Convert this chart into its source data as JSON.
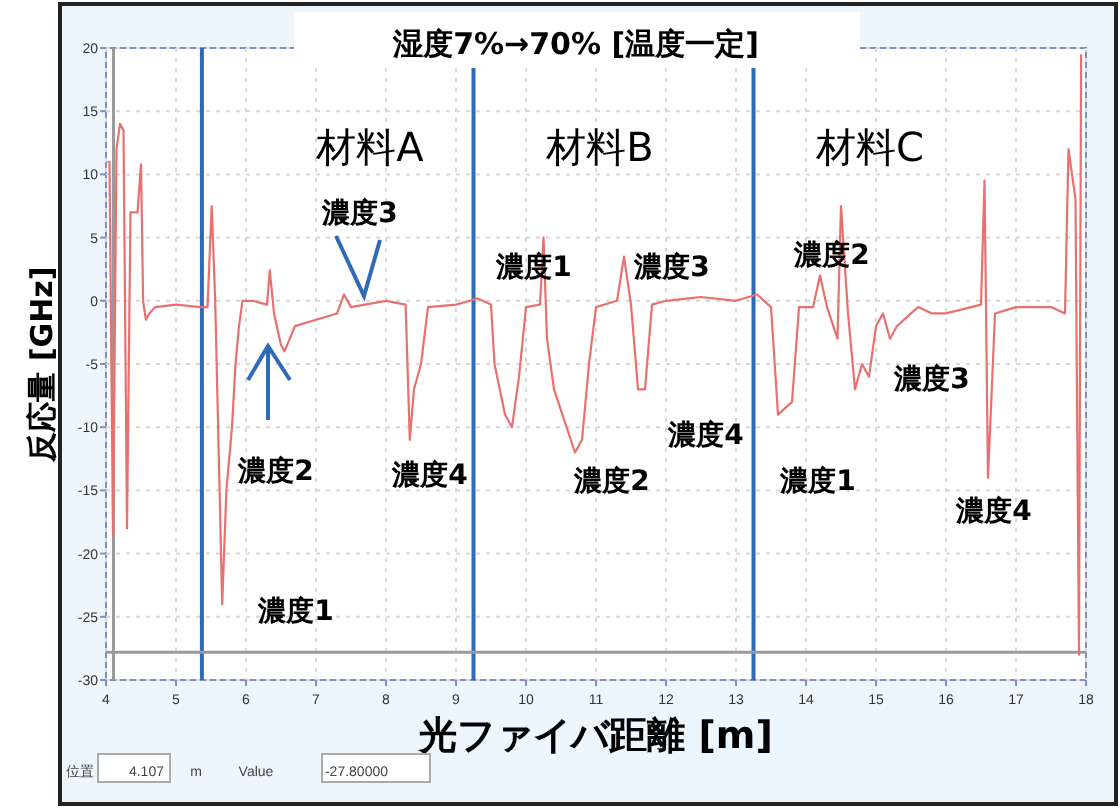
{
  "chart_data": {
    "type": "line",
    "title": "湿度7%→70% [温度一定]",
    "xlabel": "光ファイバ距離 [m]",
    "ylabel": "反応量 [GHz]",
    "xlim": [
      4,
      18
    ],
    "xticks": [
      4,
      5,
      6,
      7,
      8,
      9,
      10,
      11,
      12,
      13,
      14,
      15,
      16,
      17,
      18
    ],
    "ylim": [
      -30,
      20
    ],
    "yticks": [
      -30,
      -25,
      -20,
      -15,
      -10,
      -5,
      0,
      5,
      10,
      15,
      20
    ],
    "grid": true,
    "series": [
      {
        "color": "#e8706e",
        "x": [
          4.02,
          4.05,
          4.1,
          4.15,
          4.2,
          4.25,
          4.3,
          4.35,
          4.45,
          4.5,
          4.53,
          4.57,
          4.62,
          4.7,
          5.0,
          5.35,
          5.45,
          5.51,
          5.56,
          5.66,
          5.72,
          5.8,
          5.85,
          5.9,
          5.95,
          6.1,
          6.3,
          6.34,
          6.4,
          6.5,
          6.55,
          6.7,
          7.0,
          7.3,
          7.4,
          7.5,
          7.7,
          8.0,
          8.28,
          8.34,
          8.4,
          8.5,
          8.6,
          9.0,
          9.2,
          9.3,
          9.5,
          9.55,
          9.7,
          9.8,
          9.9,
          10.0,
          10.2,
          10.25,
          10.3,
          10.4,
          10.7,
          10.8,
          10.9,
          11.0,
          11.3,
          11.4,
          11.5,
          11.6,
          11.7,
          11.8,
          12.0,
          12.5,
          13.0,
          13.3,
          13.5,
          13.6,
          13.8,
          13.9,
          14.1,
          14.2,
          14.3,
          14.45,
          14.5,
          14.6,
          14.7,
          14.8,
          14.9,
          15.0,
          15.1,
          15.2,
          15.3,
          15.5,
          15.6,
          15.8,
          16.0,
          16.5,
          16.55,
          16.6,
          16.7,
          17.0,
          17.5,
          17.7,
          17.75,
          17.85,
          17.9,
          17.93
        ],
        "values": [
          11,
          11,
          -18.5,
          12,
          14,
          13.5,
          -18,
          7,
          7,
          10.8,
          0,
          -1.5,
          -1,
          -0.5,
          -0.3,
          -0.5,
          -0.5,
          7.5,
          0,
          -24,
          -15,
          -10,
          -5,
          -2,
          0,
          0,
          -0.3,
          2.4,
          -1,
          -3.5,
          -4,
          -2,
          -1.5,
          -1,
          0.5,
          -0.5,
          -0.3,
          0,
          -0.3,
          -11,
          -7,
          -5,
          -0.5,
          -0.3,
          0,
          0.2,
          -0.3,
          -5,
          -9,
          -10,
          -6,
          -0.5,
          -0.3,
          5,
          -3,
          -7,
          -12,
          -11,
          -5,
          -0.5,
          0,
          3.5,
          -0.3,
          -7,
          -7,
          -0.3,
          0,
          0.3,
          0,
          0.5,
          -0.5,
          -9,
          -8,
          -0.5,
          -0.5,
          2,
          -0.5,
          -3,
          7.5,
          -1,
          -7,
          -5,
          -6,
          -2,
          -1,
          -3,
          -2,
          -1,
          -0.5,
          -1,
          -1,
          -0.3,
          9.5,
          -14,
          -1,
          -0.5,
          -0.5,
          -1,
          12,
          8,
          -28,
          19.5
        ]
      }
    ],
    "ref_lines": [
      {
        "axis": "x",
        "value": 5.37,
        "color": "#2f6ab8"
      },
      {
        "axis": "x",
        "value": 9.25,
        "color": "#2f6ab8"
      },
      {
        "axis": "x",
        "value": 13.25,
        "color": "#2f6ab8"
      },
      {
        "axis": "x",
        "value": 4.107,
        "color": "#9a9a9a"
      },
      {
        "axis": "y",
        "value": -27.8,
        "color": "#9a9a9a"
      }
    ],
    "annotations": [
      "材料A",
      "材料B",
      "材料C",
      "濃度3",
      "濃度2",
      "濃度4",
      "濃度1",
      "濃度1",
      "濃度3",
      "濃度2",
      "濃度4",
      "濃度2",
      "濃度3",
      "濃度1",
      "濃度4",
      "位置",
      "4.107",
      "m",
      "Value",
      "-27.80000"
    ]
  }
}
